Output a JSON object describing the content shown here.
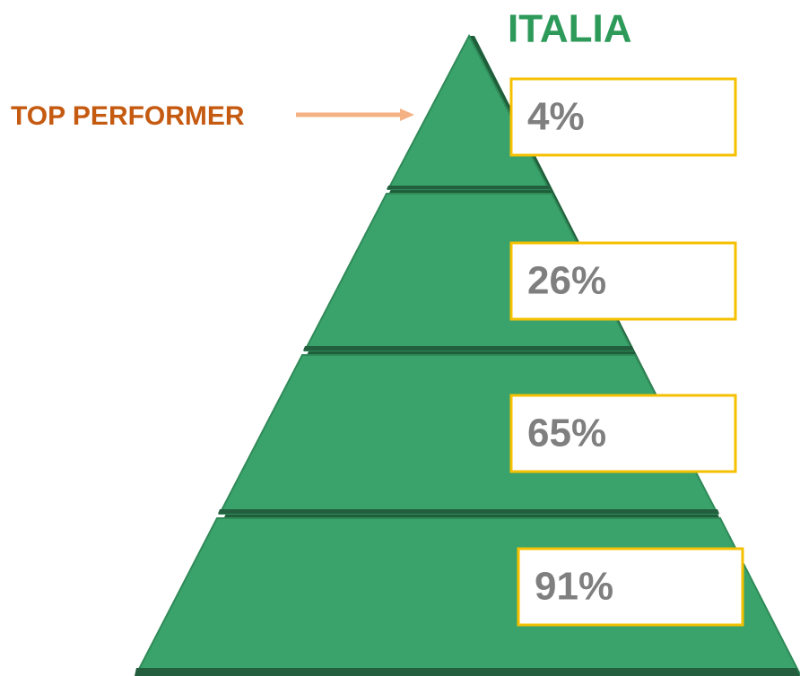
{
  "title": "ITALIA",
  "annotation": "TOP PERFORMER",
  "levels": [
    {
      "label": "4%"
    },
    {
      "label": "26%"
    },
    {
      "label": "65%"
    },
    {
      "label": "91%"
    }
  ]
}
